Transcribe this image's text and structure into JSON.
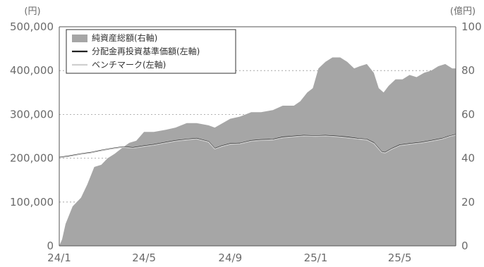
{
  "chart_data": {
    "type": "area",
    "title": "",
    "xlabel": "",
    "left_axis_unit": "(円)",
    "right_axis_unit": "(億円)",
    "x_ticks": [
      "24/1",
      "24/5",
      "24/9",
      "25/1",
      "25/5"
    ],
    "left_ticks": [
      "0",
      "100,000",
      "200,000",
      "300,000",
      "400,000",
      "500,000"
    ],
    "right_ticks": [
      "0",
      "20",
      "40",
      "60",
      "80",
      "100"
    ],
    "left_ylim": [
      0,
      500000
    ],
    "right_ylim": [
      0,
      100
    ],
    "x_range": [
      "2024-01-01",
      "2025-07-20"
    ],
    "grid": "horizontal dotted",
    "legend_placement": "top-left",
    "colors": {
      "area": "#a6a6a6",
      "nav_line": "#222222",
      "benchmark_line": "#cfcfcf",
      "grid": "#999999"
    },
    "series": [
      {
        "name": "純資産総額(右軸)",
        "kind": "area",
        "axis": "right",
        "points": [
          [
            "2024-01-01",
            0
          ],
          [
            "2024-01-05",
            3
          ],
          [
            "2024-01-10",
            10
          ],
          [
            "2024-01-20",
            18
          ],
          [
            "2024-02-01",
            22
          ],
          [
            "2024-02-10",
            28
          ],
          [
            "2024-02-20",
            36
          ],
          [
            "2024-03-01",
            37
          ],
          [
            "2024-03-10",
            40
          ],
          [
            "2024-03-20",
            42
          ],
          [
            "2024-04-01",
            45
          ],
          [
            "2024-04-10",
            47
          ],
          [
            "2024-04-20",
            48
          ],
          [
            "2024-05-01",
            52
          ],
          [
            "2024-05-15",
            52
          ],
          [
            "2024-06-01",
            53
          ],
          [
            "2024-06-15",
            54
          ],
          [
            "2024-07-01",
            56
          ],
          [
            "2024-07-15",
            56
          ],
          [
            "2024-08-01",
            55
          ],
          [
            "2024-08-10",
            54
          ],
          [
            "2024-09-01",
            58
          ],
          [
            "2024-09-15",
            59
          ],
          [
            "2024-10-01",
            61
          ],
          [
            "2024-10-15",
            61
          ],
          [
            "2024-11-01",
            62
          ],
          [
            "2024-11-15",
            64
          ],
          [
            "2024-12-01",
            64
          ],
          [
            "2024-12-10",
            66
          ],
          [
            "2024-12-20",
            70
          ],
          [
            "2024-12-28",
            72
          ],
          [
            "2025-01-05",
            81
          ],
          [
            "2025-01-15",
            84
          ],
          [
            "2025-01-25",
            86
          ],
          [
            "2025-02-05",
            86
          ],
          [
            "2025-02-15",
            84
          ],
          [
            "2025-02-25",
            81
          ],
          [
            "2025-03-05",
            82
          ],
          [
            "2025-03-15",
            83
          ],
          [
            "2025-03-25",
            79
          ],
          [
            "2025-04-01",
            72
          ],
          [
            "2025-04-08",
            70
          ],
          [
            "2025-04-15",
            73
          ],
          [
            "2025-04-25",
            76
          ],
          [
            "2025-05-05",
            76
          ],
          [
            "2025-05-15",
            78
          ],
          [
            "2025-05-25",
            77
          ],
          [
            "2025-06-05",
            79
          ],
          [
            "2025-06-15",
            80
          ],
          [
            "2025-06-25",
            82
          ],
          [
            "2025-07-05",
            83
          ],
          [
            "2025-07-15",
            81
          ],
          [
            "2025-07-20",
            81
          ]
        ]
      },
      {
        "name": "分配金再投資基準価額(左軸)",
        "kind": "line",
        "axis": "left",
        "points": [
          [
            "2024-01-01",
            202000
          ],
          [
            "2024-01-15",
            205000
          ],
          [
            "2024-02-01",
            210000
          ],
          [
            "2024-02-15",
            213000
          ],
          [
            "2024-03-01",
            218000
          ],
          [
            "2024-03-15",
            222000
          ],
          [
            "2024-04-01",
            226000
          ],
          [
            "2024-04-15",
            224000
          ],
          [
            "2024-05-01",
            228000
          ],
          [
            "2024-05-15",
            231000
          ],
          [
            "2024-06-01",
            236000
          ],
          [
            "2024-06-15",
            240000
          ],
          [
            "2024-07-01",
            243000
          ],
          [
            "2024-07-15",
            245000
          ],
          [
            "2024-08-01",
            238000
          ],
          [
            "2024-08-10",
            222000
          ],
          [
            "2024-08-20",
            228000
          ],
          [
            "2024-09-01",
            233000
          ],
          [
            "2024-09-15",
            234000
          ],
          [
            "2024-10-01",
            240000
          ],
          [
            "2024-10-15",
            242000
          ],
          [
            "2024-11-01",
            243000
          ],
          [
            "2024-11-15",
            248000
          ],
          [
            "2024-12-01",
            250000
          ],
          [
            "2024-12-15",
            252000
          ],
          [
            "2025-01-01",
            251000
          ],
          [
            "2025-01-15",
            252000
          ],
          [
            "2025-02-01",
            250000
          ],
          [
            "2025-02-15",
            248000
          ],
          [
            "2025-03-01",
            245000
          ],
          [
            "2025-03-15",
            243000
          ],
          [
            "2025-03-25",
            235000
          ],
          [
            "2025-04-05",
            215000
          ],
          [
            "2025-04-10",
            213000
          ],
          [
            "2025-04-20",
            222000
          ],
          [
            "2025-05-01",
            230000
          ],
          [
            "2025-05-15",
            233000
          ],
          [
            "2025-06-01",
            236000
          ],
          [
            "2025-06-15",
            240000
          ],
          [
            "2025-07-01",
            245000
          ],
          [
            "2025-07-10",
            250000
          ],
          [
            "2025-07-20",
            254000
          ]
        ]
      },
      {
        "name": "ベンチマーク(左軸)",
        "kind": "line",
        "axis": "left",
        "points": [
          [
            "2024-01-01",
            201000
          ],
          [
            "2024-01-15",
            204000
          ],
          [
            "2024-02-01",
            209000
          ],
          [
            "2024-02-15",
            212000
          ],
          [
            "2024-03-01",
            217000
          ],
          [
            "2024-03-15",
            221000
          ],
          [
            "2024-04-01",
            225000
          ],
          [
            "2024-04-15",
            223000
          ],
          [
            "2024-05-01",
            227000
          ],
          [
            "2024-05-15",
            230000
          ],
          [
            "2024-06-01",
            235000
          ],
          [
            "2024-06-15",
            239000
          ],
          [
            "2024-07-01",
            242000
          ],
          [
            "2024-07-15",
            244000
          ],
          [
            "2024-08-01",
            237000
          ],
          [
            "2024-08-10",
            221000
          ],
          [
            "2024-08-20",
            227000
          ],
          [
            "2024-09-01",
            232000
          ],
          [
            "2024-09-15",
            233000
          ],
          [
            "2024-10-01",
            239000
          ],
          [
            "2024-10-15",
            241000
          ],
          [
            "2024-11-01",
            242000
          ],
          [
            "2024-11-15",
            247000
          ],
          [
            "2024-12-01",
            249000
          ],
          [
            "2024-12-15",
            251000
          ],
          [
            "2025-01-01",
            250000
          ],
          [
            "2025-01-15",
            251000
          ],
          [
            "2025-02-01",
            249000
          ],
          [
            "2025-02-15",
            247000
          ],
          [
            "2025-03-01",
            244000
          ],
          [
            "2025-03-15",
            242000
          ],
          [
            "2025-03-25",
            234000
          ],
          [
            "2025-04-05",
            214000
          ],
          [
            "2025-04-10",
            212000
          ],
          [
            "2025-04-20",
            221000
          ],
          [
            "2025-05-01",
            229000
          ],
          [
            "2025-05-15",
            232000
          ],
          [
            "2025-06-01",
            235000
          ],
          [
            "2025-06-15",
            239000
          ],
          [
            "2025-07-01",
            244000
          ],
          [
            "2025-07-10",
            249000
          ],
          [
            "2025-07-20",
            253000
          ]
        ]
      }
    ]
  }
}
